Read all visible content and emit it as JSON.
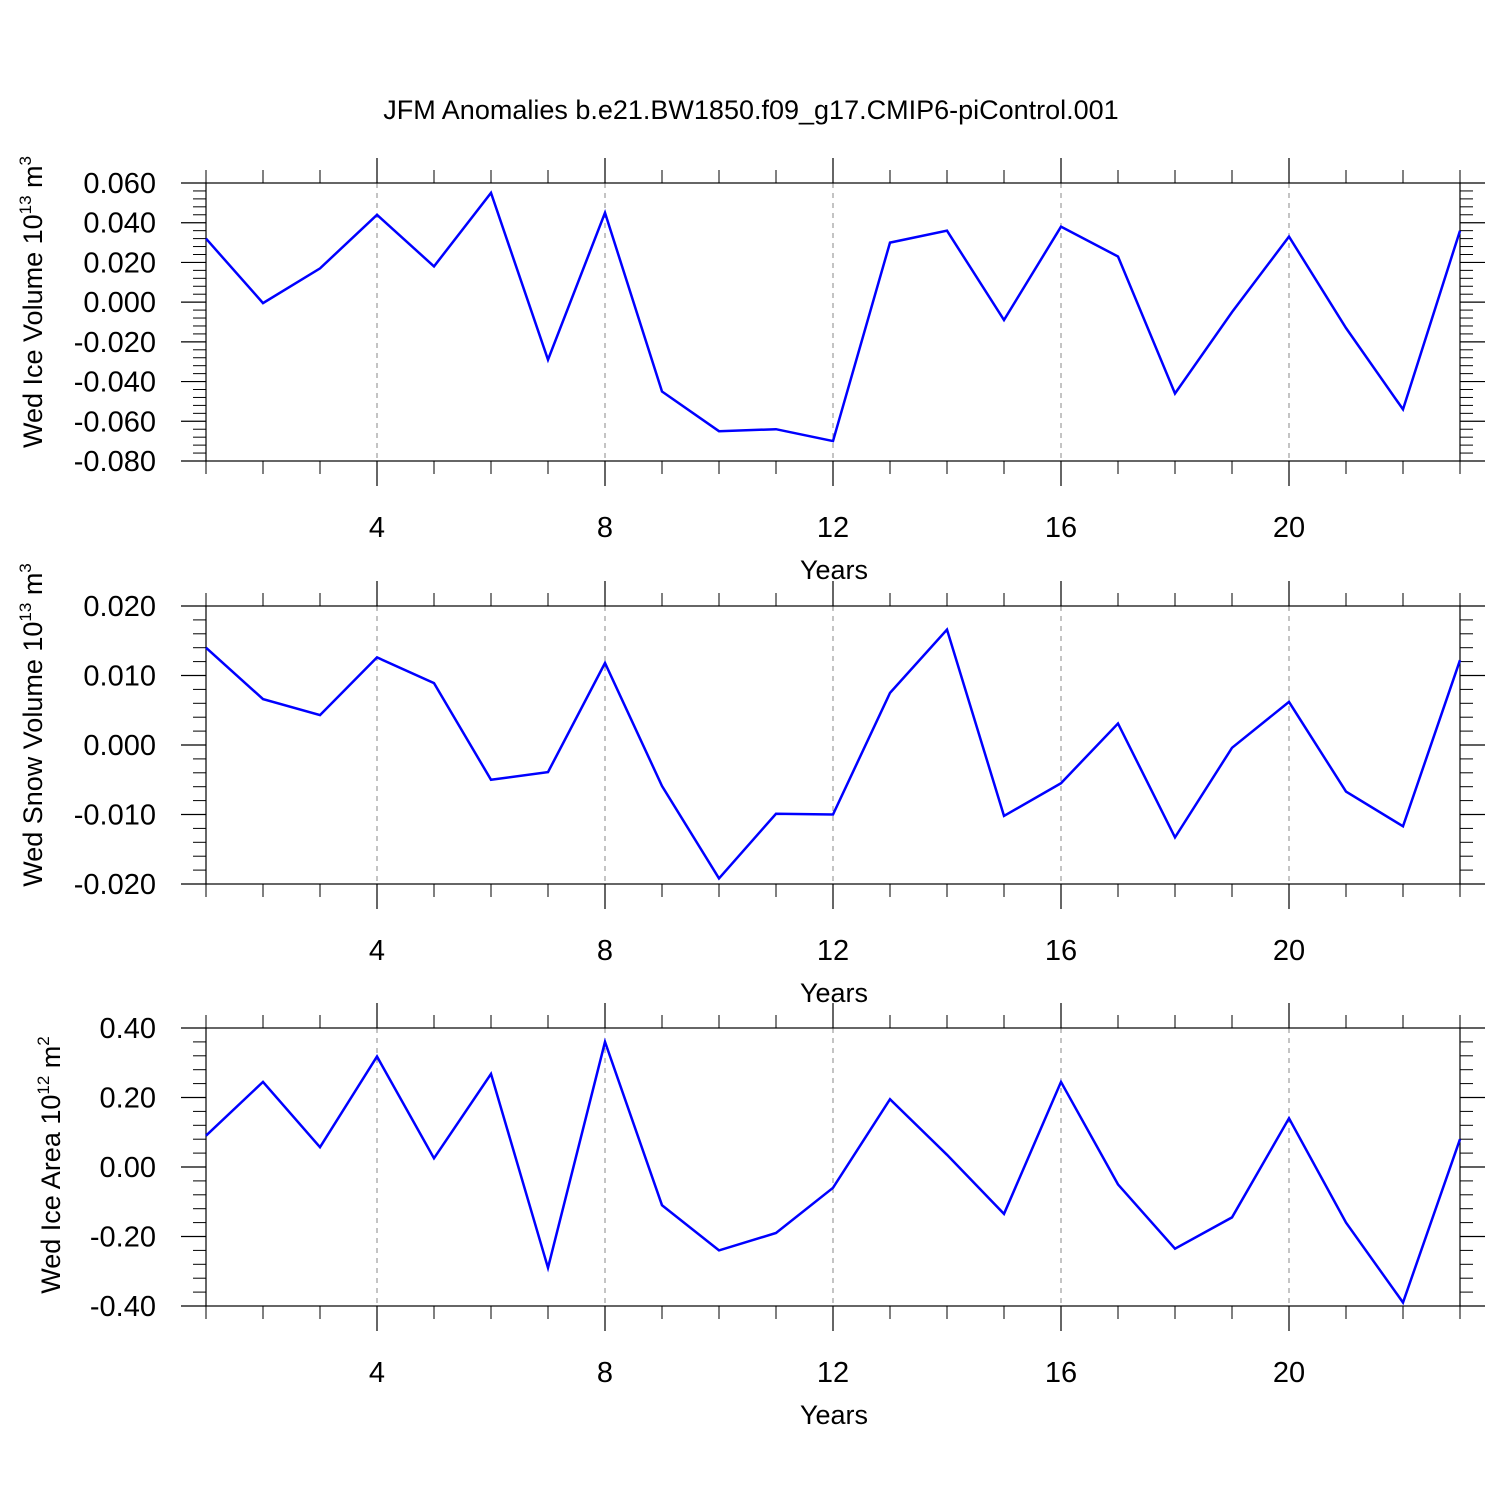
{
  "title": "JFM Anomalies b.e21.BW1850.f09_g17.CMIP6-piControl.001",
  "style": {
    "line_color": "#0000ff",
    "grid_color": "#888888"
  },
  "chart_data": [
    {
      "type": "line",
      "title": "JFM Anomalies b.e21.BW1850.f09_g17.CMIP6-piControl.001",
      "xlabel": "Years",
      "ylabel": {
        "prefix": "Wed Ice Volume 10",
        "exponent": "13",
        "unit": " m",
        "unit_exponent": "3"
      },
      "xlim": [
        1,
        23
      ],
      "ylim": [
        -0.08,
        0.06
      ],
      "xticks": [
        4,
        8,
        12,
        16,
        20
      ],
      "xtick_labels": [
        "4",
        "8",
        "12",
        "16",
        "20"
      ],
      "yticks": [
        0.06,
        0.04,
        0.02,
        0.0,
        -0.02,
        -0.04,
        -0.06,
        -0.08
      ],
      "ytick_labels": [
        "0.060",
        "0.040",
        "0.020",
        "0.000",
        "-0.020",
        "-0.040",
        "-0.060",
        "-0.080"
      ],
      "grid": "vertical dashed at major x ticks",
      "x": [
        1,
        2,
        3,
        4,
        5,
        6,
        7,
        8,
        9,
        10,
        11,
        12,
        13,
        14,
        15,
        16,
        17,
        18,
        19,
        20,
        21,
        22,
        23
      ],
      "values": [
        0.032,
        -0.0005,
        0.017,
        0.044,
        0.018,
        0.055,
        -0.029,
        0.045,
        -0.045,
        -0.065,
        -0.064,
        -0.07,
        0.03,
        0.036,
        -0.009,
        0.038,
        0.023,
        -0.046,
        -0.005,
        0.033,
        -0.013,
        -0.054,
        0.036
      ]
    },
    {
      "type": "line",
      "xlabel": "Years",
      "ylabel": {
        "prefix": "Wed Snow Volume 10",
        "exponent": "13",
        "unit": " m",
        "unit_exponent": "3"
      },
      "xlim": [
        1,
        23
      ],
      "ylim": [
        -0.02,
        0.02
      ],
      "xticks": [
        4,
        8,
        12,
        16,
        20
      ],
      "xtick_labels": [
        "4",
        "8",
        "12",
        "16",
        "20"
      ],
      "yticks": [
        0.02,
        0.01,
        0.0,
        -0.01,
        -0.02
      ],
      "ytick_labels": [
        "0.020",
        "0.010",
        "0.000",
        "-0.010",
        "-0.020"
      ],
      "grid": "vertical dashed at major x ticks",
      "x": [
        1,
        2,
        3,
        4,
        5,
        6,
        7,
        8,
        9,
        10,
        11,
        12,
        13,
        14,
        15,
        16,
        17,
        18,
        19,
        20,
        21,
        22,
        23
      ],
      "values": [
        0.014,
        0.0066,
        0.0043,
        0.0126,
        0.0089,
        -0.005,
        -0.0039,
        0.0118,
        -0.0059,
        -0.0192,
        -0.0099,
        -0.01,
        0.0075,
        0.0166,
        -0.0102,
        -0.0055,
        0.0031,
        -0.0133,
        -0.0004,
        0.0062,
        -0.0067,
        -0.0117,
        0.0122
      ]
    },
    {
      "type": "line",
      "xlabel": "Years",
      "ylabel": {
        "prefix": "Wed Ice Area 10",
        "exponent": "12",
        "unit": " m",
        "unit_exponent": "2"
      },
      "xlim": [
        1,
        23
      ],
      "ylim": [
        -0.4,
        0.4
      ],
      "xticks": [
        4,
        8,
        12,
        16,
        20
      ],
      "xtick_labels": [
        "4",
        "8",
        "12",
        "16",
        "20"
      ],
      "yticks": [
        0.4,
        0.2,
        0.0,
        -0.2,
        -0.4
      ],
      "ytick_labels": [
        "0.40",
        "0.20",
        "0.00",
        "-0.20",
        "-0.40"
      ],
      "grid": "vertical dashed at major x ticks",
      "x": [
        1,
        2,
        3,
        4,
        5,
        6,
        7,
        8,
        9,
        10,
        11,
        12,
        13,
        14,
        15,
        16,
        17,
        18,
        19,
        20,
        21,
        22,
        23
      ],
      "values": [
        0.09,
        0.245,
        0.057,
        0.318,
        0.025,
        0.268,
        -0.29,
        0.36,
        -0.11,
        -0.24,
        -0.19,
        -0.06,
        0.195,
        0.035,
        -0.135,
        0.245,
        -0.05,
        -0.235,
        -0.145,
        0.14,
        -0.16,
        -0.39,
        0.08
      ]
    }
  ]
}
